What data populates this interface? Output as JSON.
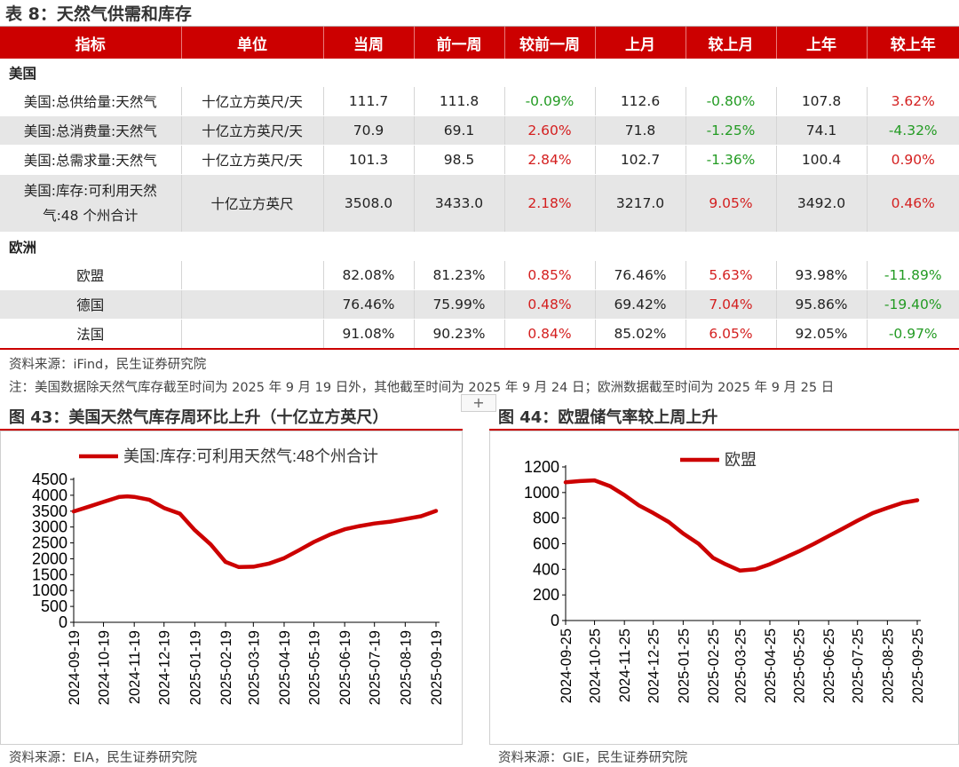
{
  "table": {
    "title": "表 8：天然气供需和库存",
    "headers": [
      "指标",
      "单位",
      "当周",
      "前一周",
      "较前一周",
      "上月",
      "较上月",
      "上年",
      "较上年"
    ],
    "sections": [
      {
        "name": "美国",
        "rows": [
          {
            "name": "美国:总供给量:天然气",
            "unit": "十亿立方英尺/天",
            "cur": "111.7",
            "prev": "111.8",
            "chg_w": "-0.09%",
            "month": "112.6",
            "chg_m": "-0.80%",
            "year": "107.8",
            "chg_y": "3.62%"
          },
          {
            "name": "美国:总消费量:天然气",
            "unit": "十亿立方英尺/天",
            "cur": "70.9",
            "prev": "69.1",
            "chg_w": "2.60%",
            "month": "71.8",
            "chg_m": "-1.25%",
            "year": "74.1",
            "chg_y": "-4.32%"
          },
          {
            "name": "美国:总需求量:天然气",
            "unit": "十亿立方英尺/天",
            "cur": "101.3",
            "prev": "98.5",
            "chg_w": "2.84%",
            "month": "102.7",
            "chg_m": "-1.36%",
            "year": "100.4",
            "chg_y": "0.90%"
          },
          {
            "name": "美国:库存:可利用天然气:48 个州合计",
            "unit": "十亿立方英尺",
            "cur": "3508.0",
            "prev": "3433.0",
            "chg_w": "2.18%",
            "month": "3217.0",
            "chg_m": "9.05%",
            "year": "3492.0",
            "chg_y": "0.46%"
          }
        ]
      },
      {
        "name": "欧洲",
        "rows": [
          {
            "name": "欧盟",
            "unit": "",
            "cur": "82.08%",
            "prev": "81.23%",
            "chg_w": "0.85%",
            "month": "76.46%",
            "chg_m": "5.63%",
            "year": "93.98%",
            "chg_y": "-11.89%"
          },
          {
            "name": "德国",
            "unit": "",
            "cur": "76.46%",
            "prev": "75.99%",
            "chg_w": "0.48%",
            "month": "69.42%",
            "chg_m": "7.04%",
            "year": "95.86%",
            "chg_y": "-19.40%"
          },
          {
            "name": "法国",
            "unit": "",
            "cur": "91.08%",
            "prev": "90.23%",
            "chg_w": "0.84%",
            "month": "85.02%",
            "chg_m": "6.05%",
            "year": "92.05%",
            "chg_y": "-0.97%"
          }
        ]
      }
    ],
    "source": "资料来源：iFind，民生证券研究院",
    "note": "注：美国数据除天然气库存截至时间为 2025 年 9 月 19 日外，其他截至时间为 2025 年 9 月 24 日；欧洲数据截至时间为 2025 年 9 月 25 日"
  },
  "colors": {
    "brand_red": "#cc0000",
    "positive": "#d41f1f",
    "negative": "#239b23",
    "stripe": "#e6e6e6"
  },
  "add_button": "+",
  "figures": [
    {
      "title": "图 43：美国天然气库存周环比上升（十亿立方英尺）",
      "source": "资料来源：EIA，民生证券研究院"
    },
    {
      "title": "图 44：欧盟储气率较上周上升",
      "source": "资料来源：GIE，民生证券研究院"
    }
  ],
  "chart_data": [
    {
      "type": "line",
      "title": "",
      "xlabel": "",
      "ylabel": "",
      "legend": "top-center",
      "grid": false,
      "color": "#cc0000",
      "ylim": [
        0,
        4500
      ],
      "yticks": [
        "0",
        "500",
        "1000",
        "1500",
        "2000",
        "2500",
        "3000",
        "3500",
        "4000",
        "4500"
      ],
      "xticks": [
        "2024-09-19",
        "2024-10-19",
        "2024-11-19",
        "2024-12-19",
        "2025-01-19",
        "2025-02-19",
        "2025-03-19",
        "2025-04-19",
        "2025-05-19",
        "2025-06-19",
        "2025-07-19",
        "2025-08-19",
        "2025-09-19"
      ],
      "series": [
        {
          "name": "美国:库存:可利用天然气:48个州合计",
          "x": [
            "2024-09-19",
            "2024-10-04",
            "2024-10-19",
            "2024-11-04",
            "2024-11-12",
            "2024-11-19",
            "2024-12-04",
            "2024-12-19",
            "2025-01-04",
            "2025-01-19",
            "2025-02-04",
            "2025-02-19",
            "2025-03-04",
            "2025-03-19",
            "2025-04-04",
            "2025-04-19",
            "2025-05-04",
            "2025-05-19",
            "2025-06-04",
            "2025-06-19",
            "2025-07-04",
            "2025-07-19",
            "2025-08-04",
            "2025-08-19",
            "2025-09-04",
            "2025-09-19"
          ],
          "values": [
            3492,
            3640,
            3790,
            3950,
            3965,
            3950,
            3860,
            3600,
            3420,
            2900,
            2450,
            1900,
            1740,
            1750,
            1850,
            2020,
            2270,
            2530,
            2760,
            2930,
            3030,
            3110,
            3170,
            3250,
            3340,
            3508
          ]
        }
      ]
    },
    {
      "type": "line",
      "title": "",
      "xlabel": "",
      "ylabel": "",
      "legend": "top-center",
      "grid": false,
      "color": "#cc0000",
      "ylim": [
        0,
        1200
      ],
      "yticks": [
        "0",
        "200",
        "400",
        "600",
        "800",
        "1000",
        "1200"
      ],
      "xticks": [
        "2024-09-25",
        "2024-10-25",
        "2024-11-25",
        "2024-12-25",
        "2025-01-25",
        "2025-02-25",
        "2025-03-25",
        "2025-04-25",
        "2025-05-25",
        "2025-06-25",
        "2025-07-25",
        "2025-08-25",
        "2025-09-25"
      ],
      "series": [
        {
          "name": "欧盟",
          "x": [
            "2024-09-25",
            "2024-10-10",
            "2024-10-25",
            "2024-11-10",
            "2024-11-25",
            "2024-12-10",
            "2024-12-25",
            "2025-01-10",
            "2025-01-25",
            "2025-02-10",
            "2025-02-25",
            "2025-03-10",
            "2025-03-25",
            "2025-04-10",
            "2025-04-25",
            "2025-05-10",
            "2025-05-25",
            "2025-06-10",
            "2025-06-25",
            "2025-07-10",
            "2025-07-25",
            "2025-08-10",
            "2025-08-25",
            "2025-09-10",
            "2025-09-25"
          ],
          "values": [
            1080,
            1090,
            1095,
            1050,
            980,
            900,
            840,
            770,
            680,
            600,
            490,
            440,
            390,
            400,
            440,
            490,
            540,
            600,
            660,
            720,
            780,
            840,
            880,
            920,
            940
          ]
        }
      ]
    }
  ]
}
